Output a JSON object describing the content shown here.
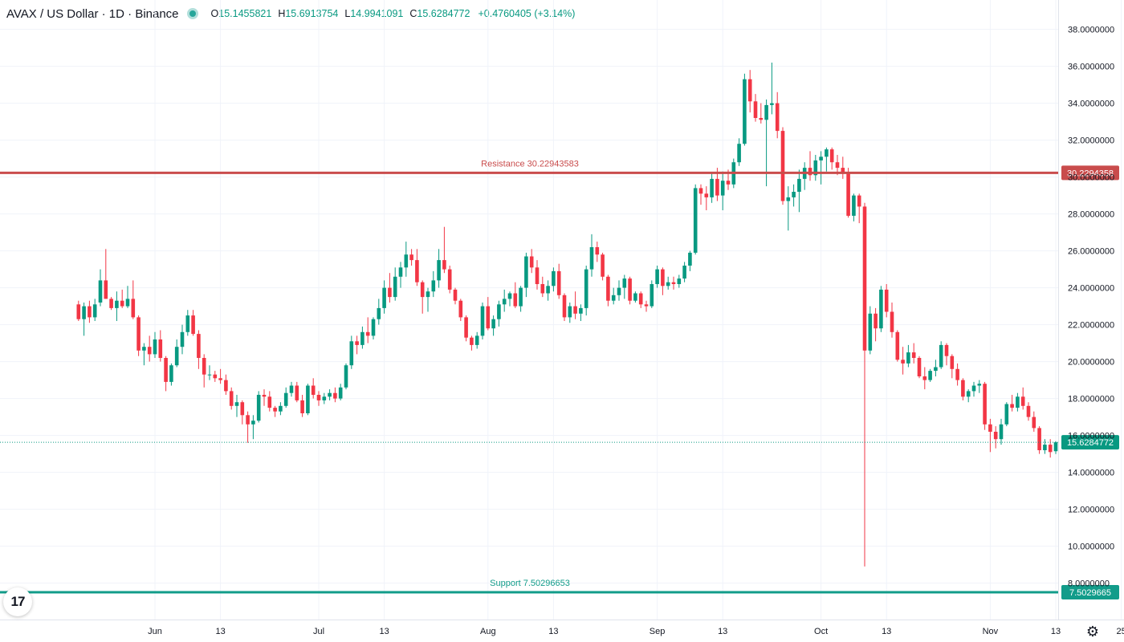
{
  "legend": {
    "title": "AVAX / US Dollar · 1D · Binance",
    "o_label": "O",
    "o_value": "15.1455821",
    "h_label": "H",
    "h_value": "15.6913754",
    "l_label": "L",
    "l_value": "14.9941091",
    "c_label": "C",
    "c_value": "15.6284772",
    "change": "+0.4760405 (+3.14%)"
  },
  "colors": {
    "up": "#089981",
    "down": "#f23645",
    "resistance": "#c94c4c",
    "support": "#129c8a",
    "grid": "#f0f3fa",
    "axis_text": "#131722",
    "last_price": "#089981"
  },
  "chart_data": {
    "type": "candlestick",
    "title": "AVAX / US Dollar · 1D · Binance",
    "ylim": [
      7.2,
      38.8
    ],
    "y_ticks": [
      "38.0000000",
      "36.0000000",
      "34.0000000",
      "32.0000000",
      "30.0000000",
      "28.0000000",
      "26.0000000",
      "24.0000000",
      "22.0000000",
      "20.0000000",
      "18.0000000",
      "16.0000000",
      "14.0000000",
      "12.0000000",
      "10.0000000",
      "8.0000000"
    ],
    "y_tick_values": [
      38,
      36,
      34,
      32,
      30,
      28,
      26,
      24,
      22,
      20,
      18,
      16,
      14,
      12,
      10,
      8
    ],
    "x_ticks": [
      {
        "label": "Jun",
        "day": 31
      },
      {
        "label": "13",
        "day": 43
      },
      {
        "label": "Jul",
        "day": 61
      },
      {
        "label": "13",
        "day": 73
      },
      {
        "label": "Aug",
        "day": 92
      },
      {
        "label": "13",
        "day": 104
      },
      {
        "label": "Sep",
        "day": 123
      },
      {
        "label": "13",
        "day": 135
      },
      {
        "label": "Oct",
        "day": 153
      },
      {
        "label": "13",
        "day": 165
      },
      {
        "label": "Nov",
        "day": 184
      },
      {
        "label": "13",
        "day": 196
      },
      {
        "label": "25",
        "day": 208
      }
    ],
    "first_day": 17,
    "days_ohlc": [
      [
        23.1,
        23.3,
        22.2,
        22.3
      ],
      [
        22.3,
        23.2,
        21.4,
        23.0
      ],
      [
        23.0,
        23.3,
        22.1,
        22.4
      ],
      [
        22.4,
        23.4,
        22.2,
        23.1
      ],
      [
        23.2,
        25.0,
        23.0,
        24.4
      ],
      [
        24.4,
        26.1,
        23.4,
        23.4
      ],
      [
        23.4,
        23.5,
        22.8,
        22.9
      ],
      [
        22.9,
        23.8,
        22.2,
        23.3
      ],
      [
        23.3,
        23.9,
        22.9,
        23.0
      ],
      [
        23.0,
        24.1,
        22.9,
        23.4
      ],
      [
        23.4,
        24.4,
        22.3,
        22.4
      ],
      [
        22.4,
        22.5,
        20.3,
        20.6
      ],
      [
        20.6,
        21.0,
        19.8,
        20.8
      ],
      [
        20.8,
        21.4,
        20.0,
        20.4
      ],
      [
        20.4,
        21.6,
        20.2,
        21.2
      ],
      [
        21.2,
        21.7,
        20.0,
        20.2
      ],
      [
        20.2,
        20.3,
        18.4,
        18.9
      ],
      [
        18.9,
        19.9,
        18.7,
        19.8
      ],
      [
        19.8,
        21.2,
        19.7,
        20.8
      ],
      [
        20.8,
        22.0,
        20.4,
        21.6
      ],
      [
        21.6,
        22.8,
        21.4,
        22.5
      ],
      [
        22.5,
        22.8,
        21.4,
        21.5
      ],
      [
        21.5,
        21.7,
        19.6,
        20.2
      ],
      [
        20.2,
        20.4,
        18.6,
        19.3
      ],
      [
        19.3,
        19.8,
        19.0,
        19.3
      ],
      [
        19.3,
        19.5,
        18.9,
        19.1
      ],
      [
        19.1,
        19.6,
        18.8,
        19.0
      ],
      [
        19.0,
        19.3,
        18.2,
        18.4
      ],
      [
        18.4,
        18.6,
        17.4,
        17.6
      ],
      [
        17.6,
        18.2,
        17.0,
        17.8
      ],
      [
        17.8,
        17.9,
        16.6,
        17.1
      ],
      [
        17.1,
        17.3,
        15.6,
        16.6
      ],
      [
        16.6,
        17.1,
        15.8,
        16.8
      ],
      [
        16.8,
        18.4,
        16.7,
        18.2
      ],
      [
        18.2,
        18.5,
        17.6,
        18.1
      ],
      [
        18.1,
        18.4,
        17.3,
        17.5
      ],
      [
        17.5,
        17.6,
        17.0,
        17.3
      ],
      [
        17.3,
        17.8,
        17.1,
        17.6
      ],
      [
        17.6,
        18.6,
        17.5,
        18.3
      ],
      [
        18.3,
        18.9,
        18.1,
        18.7
      ],
      [
        18.7,
        18.9,
        17.8,
        17.9
      ],
      [
        17.9,
        18.2,
        17.0,
        17.2
      ],
      [
        17.2,
        18.8,
        17.1,
        18.7
      ],
      [
        18.7,
        19.1,
        18.0,
        18.2
      ],
      [
        18.2,
        18.4,
        17.6,
        17.9
      ],
      [
        17.9,
        18.3,
        17.7,
        18.1
      ],
      [
        18.1,
        18.5,
        17.9,
        18.3
      ],
      [
        18.3,
        18.6,
        17.8,
        18.0
      ],
      [
        18.0,
        18.8,
        17.9,
        18.6
      ],
      [
        18.6,
        19.9,
        18.5,
        19.8
      ],
      [
        19.8,
        21.4,
        19.6,
        21.1
      ],
      [
        21.1,
        21.4,
        20.4,
        20.9
      ],
      [
        20.9,
        21.9,
        20.7,
        21.6
      ],
      [
        21.6,
        22.4,
        21.0,
        21.4
      ],
      [
        21.4,
        22.4,
        21.2,
        22.3
      ],
      [
        22.3,
        23.4,
        22.0,
        22.9
      ],
      [
        22.9,
        24.4,
        22.6,
        24.0
      ],
      [
        24.0,
        24.8,
        23.2,
        23.5
      ],
      [
        23.5,
        25.1,
        23.3,
        24.6
      ],
      [
        24.6,
        25.4,
        24.0,
        25.1
      ],
      [
        25.1,
        26.5,
        24.6,
        25.8
      ],
      [
        25.8,
        26.1,
        25.2,
        25.5
      ],
      [
        25.5,
        26.1,
        24.1,
        24.3
      ],
      [
        24.3,
        24.4,
        22.6,
        23.5
      ],
      [
        23.5,
        24.0,
        22.7,
        23.8
      ],
      [
        23.8,
        24.9,
        23.5,
        24.4
      ],
      [
        24.4,
        26.1,
        24.0,
        25.5
      ],
      [
        25.5,
        27.3,
        24.8,
        25.0
      ],
      [
        25.0,
        25.2,
        23.7,
        23.9
      ],
      [
        23.9,
        24.0,
        23.1,
        23.3
      ],
      [
        23.3,
        23.4,
        22.2,
        22.4
      ],
      [
        22.4,
        22.5,
        21.1,
        21.3
      ],
      [
        21.3,
        21.4,
        20.6,
        20.9
      ],
      [
        20.9,
        21.6,
        20.7,
        21.4
      ],
      [
        21.4,
        23.2,
        21.2,
        23.0
      ],
      [
        23.0,
        23.5,
        21.7,
        21.8
      ],
      [
        21.8,
        22.5,
        21.4,
        22.3
      ],
      [
        22.3,
        23.3,
        21.9,
        23.1
      ],
      [
        23.1,
        23.9,
        22.7,
        23.4
      ],
      [
        23.4,
        23.8,
        23.0,
        23.7
      ],
      [
        23.7,
        24.3,
        22.9,
        23.0
      ],
      [
        23.0,
        24.1,
        22.7,
        24.0
      ],
      [
        24.0,
        25.9,
        23.5,
        25.7
      ],
      [
        25.7,
        26.1,
        24.8,
        25.1
      ],
      [
        25.1,
        25.5,
        23.9,
        24.2
      ],
      [
        24.2,
        24.6,
        23.5,
        23.7
      ],
      [
        23.7,
        24.4,
        23.3,
        24.1
      ],
      [
        24.1,
        25.1,
        23.8,
        24.9
      ],
      [
        24.9,
        25.3,
        23.4,
        23.6
      ],
      [
        23.6,
        23.7,
        22.2,
        22.4
      ],
      [
        22.4,
        23.2,
        22.1,
        23.0
      ],
      [
        23.0,
        23.8,
        22.3,
        22.6
      ],
      [
        22.6,
        23.1,
        22.2,
        22.9
      ],
      [
        22.9,
        25.2,
        22.5,
        25.0
      ],
      [
        25.0,
        26.9,
        24.6,
        26.2
      ],
      [
        26.2,
        26.5,
        25.4,
        25.8
      ],
      [
        25.8,
        25.9,
        24.4,
        24.6
      ],
      [
        24.6,
        24.7,
        23.0,
        23.3
      ],
      [
        23.3,
        24.0,
        23.1,
        23.6
      ],
      [
        23.6,
        24.4,
        23.3,
        24.0
      ],
      [
        24.0,
        24.7,
        23.4,
        24.5
      ],
      [
        24.5,
        24.6,
        23.1,
        23.3
      ],
      [
        23.3,
        23.8,
        23.2,
        23.7
      ],
      [
        23.7,
        23.8,
        22.9,
        23.1
      ],
      [
        23.1,
        23.3,
        22.7,
        23.0
      ],
      [
        23.0,
        24.4,
        22.9,
        24.2
      ],
      [
        24.2,
        25.2,
        24.0,
        25.0
      ],
      [
        25.0,
        25.1,
        23.6,
        24.1
      ],
      [
        24.1,
        24.6,
        23.9,
        24.3
      ],
      [
        24.3,
        24.6,
        23.9,
        24.2
      ],
      [
        24.2,
        24.7,
        24.0,
        24.5
      ],
      [
        24.5,
        25.4,
        24.3,
        25.2
      ],
      [
        25.2,
        26.0,
        24.9,
        25.9
      ],
      [
        25.9,
        29.6,
        25.8,
        29.4
      ],
      [
        29.4,
        29.6,
        28.5,
        29.1
      ],
      [
        29.1,
        29.5,
        28.2,
        28.9
      ],
      [
        28.9,
        30.2,
        28.6,
        29.9
      ],
      [
        29.9,
        30.5,
        28.7,
        29.0
      ],
      [
        29.0,
        30.3,
        28.2,
        29.8
      ],
      [
        29.8,
        30.4,
        29.3,
        29.6
      ],
      [
        29.6,
        31.0,
        29.4,
        30.8
      ],
      [
        30.8,
        32.1,
        30.6,
        31.8
      ],
      [
        31.8,
        35.6,
        31.7,
        35.3
      ],
      [
        35.3,
        35.8,
        33.5,
        34.1
      ],
      [
        34.1,
        34.5,
        33.0,
        33.2
      ],
      [
        33.2,
        34.0,
        32.9,
        33.1
      ],
      [
        33.1,
        34.2,
        29.5,
        33.9
      ],
      [
        33.9,
        36.2,
        33.4,
        34.0
      ],
      [
        34.0,
        34.6,
        32.1,
        32.5
      ],
      [
        32.5,
        32.7,
        28.5,
        28.7
      ],
      [
        28.7,
        29.5,
        27.1,
        28.9
      ],
      [
        28.9,
        29.6,
        28.4,
        29.2
      ],
      [
        29.2,
        30.4,
        28.1,
        29.9
      ],
      [
        29.9,
        30.8,
        29.3,
        30.5
      ],
      [
        30.5,
        31.4,
        29.8,
        30.1
      ],
      [
        30.1,
        31.2,
        29.8,
        30.9
      ],
      [
        30.9,
        31.4,
        29.6,
        31.1
      ],
      [
        31.1,
        31.6,
        30.3,
        31.5
      ],
      [
        31.5,
        31.6,
        30.4,
        30.8
      ],
      [
        30.8,
        31.2,
        30.1,
        30.5
      ],
      [
        30.5,
        31.1,
        29.9,
        30.2
      ],
      [
        30.2,
        30.5,
        27.8,
        27.9
      ],
      [
        27.9,
        29.1,
        27.6,
        29.0
      ],
      [
        29.0,
        29.1,
        27.5,
        28.4
      ],
      [
        28.4,
        28.6,
        8.9,
        20.6
      ],
      [
        20.6,
        23.0,
        20.4,
        22.6
      ],
      [
        22.6,
        22.9,
        21.1,
        21.8
      ],
      [
        21.8,
        24.1,
        21.6,
        23.9
      ],
      [
        23.9,
        24.2,
        22.4,
        22.7
      ],
      [
        22.7,
        23.2,
        21.3,
        21.6
      ],
      [
        21.6,
        21.7,
        20.0,
        20.1
      ],
      [
        20.1,
        20.8,
        19.3,
        19.9
      ],
      [
        19.9,
        20.9,
        19.7,
        20.5
      ],
      [
        20.5,
        21.0,
        19.9,
        20.2
      ],
      [
        20.2,
        20.3,
        19.1,
        19.2
      ],
      [
        19.2,
        19.7,
        18.5,
        19.0
      ],
      [
        19.0,
        19.6,
        18.9,
        19.5
      ],
      [
        19.5,
        20.1,
        19.2,
        19.7
      ],
      [
        19.7,
        21.1,
        19.6,
        20.9
      ],
      [
        20.9,
        21.0,
        19.8,
        20.3
      ],
      [
        20.3,
        20.4,
        19.1,
        19.6
      ],
      [
        19.6,
        19.9,
        18.7,
        19.0
      ],
      [
        19.0,
        19.1,
        17.9,
        18.1
      ],
      [
        18.1,
        18.5,
        17.8,
        18.4
      ],
      [
        18.4,
        18.9,
        18.1,
        18.7
      ],
      [
        18.7,
        19.0,
        18.3,
        18.8
      ],
      [
        18.8,
        18.9,
        16.3,
        16.6
      ],
      [
        16.6,
        16.9,
        15.1,
        16.2
      ],
      [
        16.2,
        16.5,
        15.3,
        15.8
      ],
      [
        15.8,
        16.9,
        15.5,
        16.6
      ],
      [
        16.6,
        17.8,
        16.5,
        17.7
      ],
      [
        17.7,
        18.2,
        17.3,
        17.5
      ],
      [
        17.5,
        18.3,
        17.3,
        18.1
      ],
      [
        18.1,
        18.6,
        17.4,
        17.6
      ],
      [
        17.6,
        17.8,
        16.8,
        17.0
      ],
      [
        17.0,
        17.3,
        16.2,
        16.4
      ],
      [
        16.4,
        16.5,
        15.0,
        15.2
      ],
      [
        15.2,
        15.8,
        15.0,
        15.5
      ],
      [
        15.5,
        15.8,
        14.8,
        15.1
      ],
      [
        15.1455821,
        15.6913754,
        14.9941091,
        15.6284772
      ]
    ],
    "lines": [
      {
        "name": "Resistance",
        "label": "Resistance 30.22943583",
        "value": 30.22943583,
        "axis_label": "30.2294358",
        "color": "#c94c4c"
      },
      {
        "name": "Support",
        "label": "Support 7.50296653",
        "value": 7.50296653,
        "axis_label": "7.5029665",
        "color": "#129c8a"
      }
    ],
    "last_price": {
      "value": 15.6284772,
      "axis_label": "15.6284772"
    }
  },
  "icons": {
    "logo": "tradingview-logo-icon",
    "settings": "gear-icon"
  },
  "logo_text": "17",
  "settings_glyph": "⚙"
}
